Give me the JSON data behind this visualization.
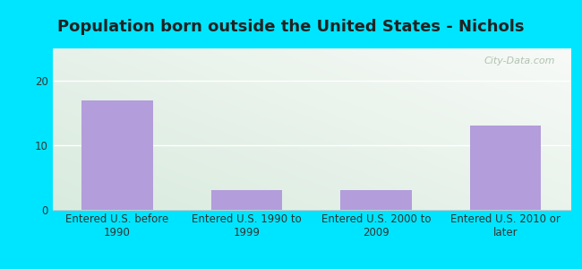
{
  "title": "Population born outside the United States - Nichols",
  "categories": [
    "Entered U.S. before\n1990",
    "Entered U.S. 1990 to\n1999",
    "Entered U.S. 2000 to\n2009",
    "Entered U.S. 2010 or\nlater"
  ],
  "values": [
    17,
    3,
    3,
    13
  ],
  "bar_color": "#b39ddb",
  "ylim": [
    0,
    25
  ],
  "yticks": [
    0,
    10,
    20
  ],
  "bg_outer": "#00e5ff",
  "bg_top_left": "#d4edda",
  "bg_top_right": "#f0f8f0",
  "bg_bottom_left": "#c8e6c9",
  "bg_bottom_right": "#e8f5e9",
  "grid_color": "#e0e0e0",
  "title_fontsize": 13,
  "tick_fontsize": 8.5,
  "watermark_text": "City-Data.com",
  "watermark_color": "#aabcaa",
  "title_color": "#222222"
}
